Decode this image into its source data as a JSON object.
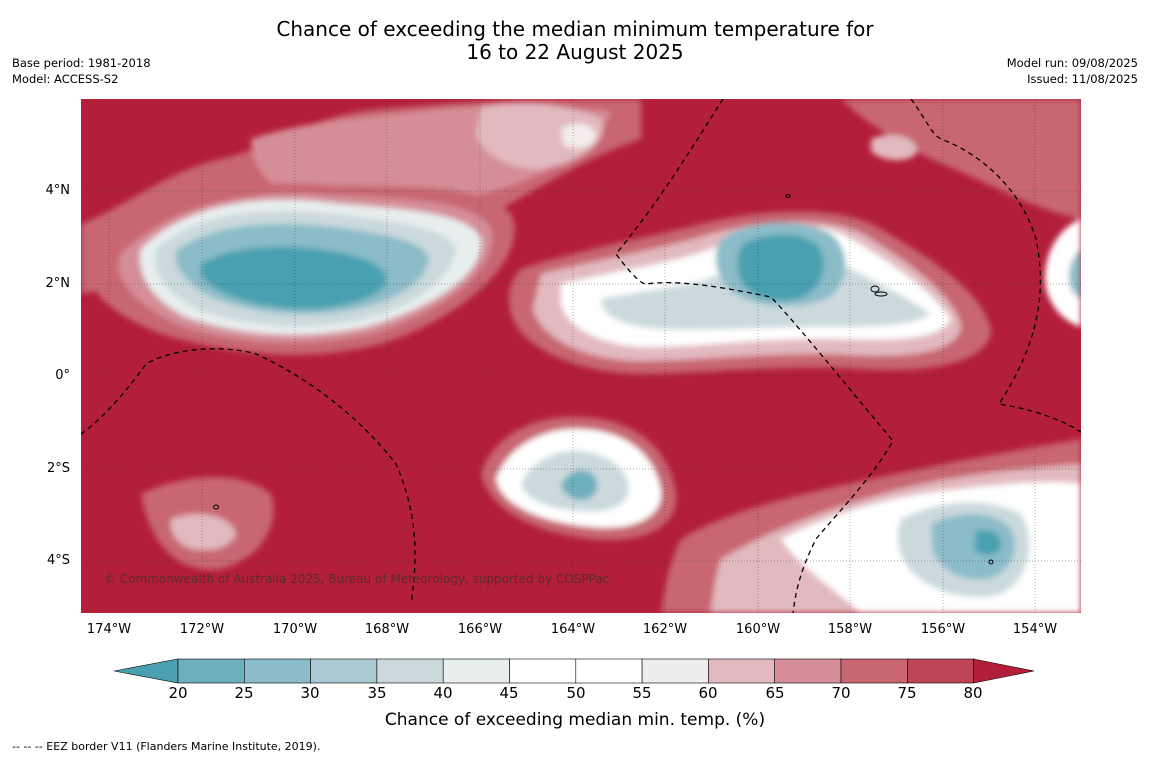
{
  "title_line1": "Chance of exceeding the median minimum temperature for",
  "title_line2": "16 to 22 August 2025",
  "base_period": "Base period: 1981-2018",
  "model": "Model: ACCESS-S2",
  "model_run": "Model run: 09/08/2025",
  "issued": "Issued: 11/08/2025",
  "lat_labels": [
    "4°N",
    "2°N",
    "0°",
    "2°S",
    "4°S"
  ],
  "lon_labels": [
    "174°W",
    "172°W",
    "170°W",
    "168°W",
    "166°W",
    "164°W",
    "162°W",
    "160°W",
    "158°W",
    "156°W",
    "154°W"
  ],
  "copyright": "© Commonwealth of Australia 2025, Bureau of Meteorology, supported by COSPPac",
  "colorbar": {
    "ticks": [
      "20",
      "25",
      "30",
      "35",
      "40",
      "45",
      "50",
      "55",
      "60",
      "65",
      "70",
      "75",
      "80"
    ],
    "colors": [
      "#4aa0b0",
      "#6eafbd",
      "#8bbcc8",
      "#aac9d0",
      "#cbd9dd",
      "#e8eeee",
      "#ffffff",
      "#ffffff",
      "#eeedeb",
      "#e2b9be",
      "#d58e98",
      "#c86672",
      "#be4555",
      "#b31e3a"
    ],
    "title": "Chance of exceeding median min. temp. (%)"
  },
  "legend": "--  --  -- EEZ border V11 (Flanders Marine Institute, 2019)."
}
